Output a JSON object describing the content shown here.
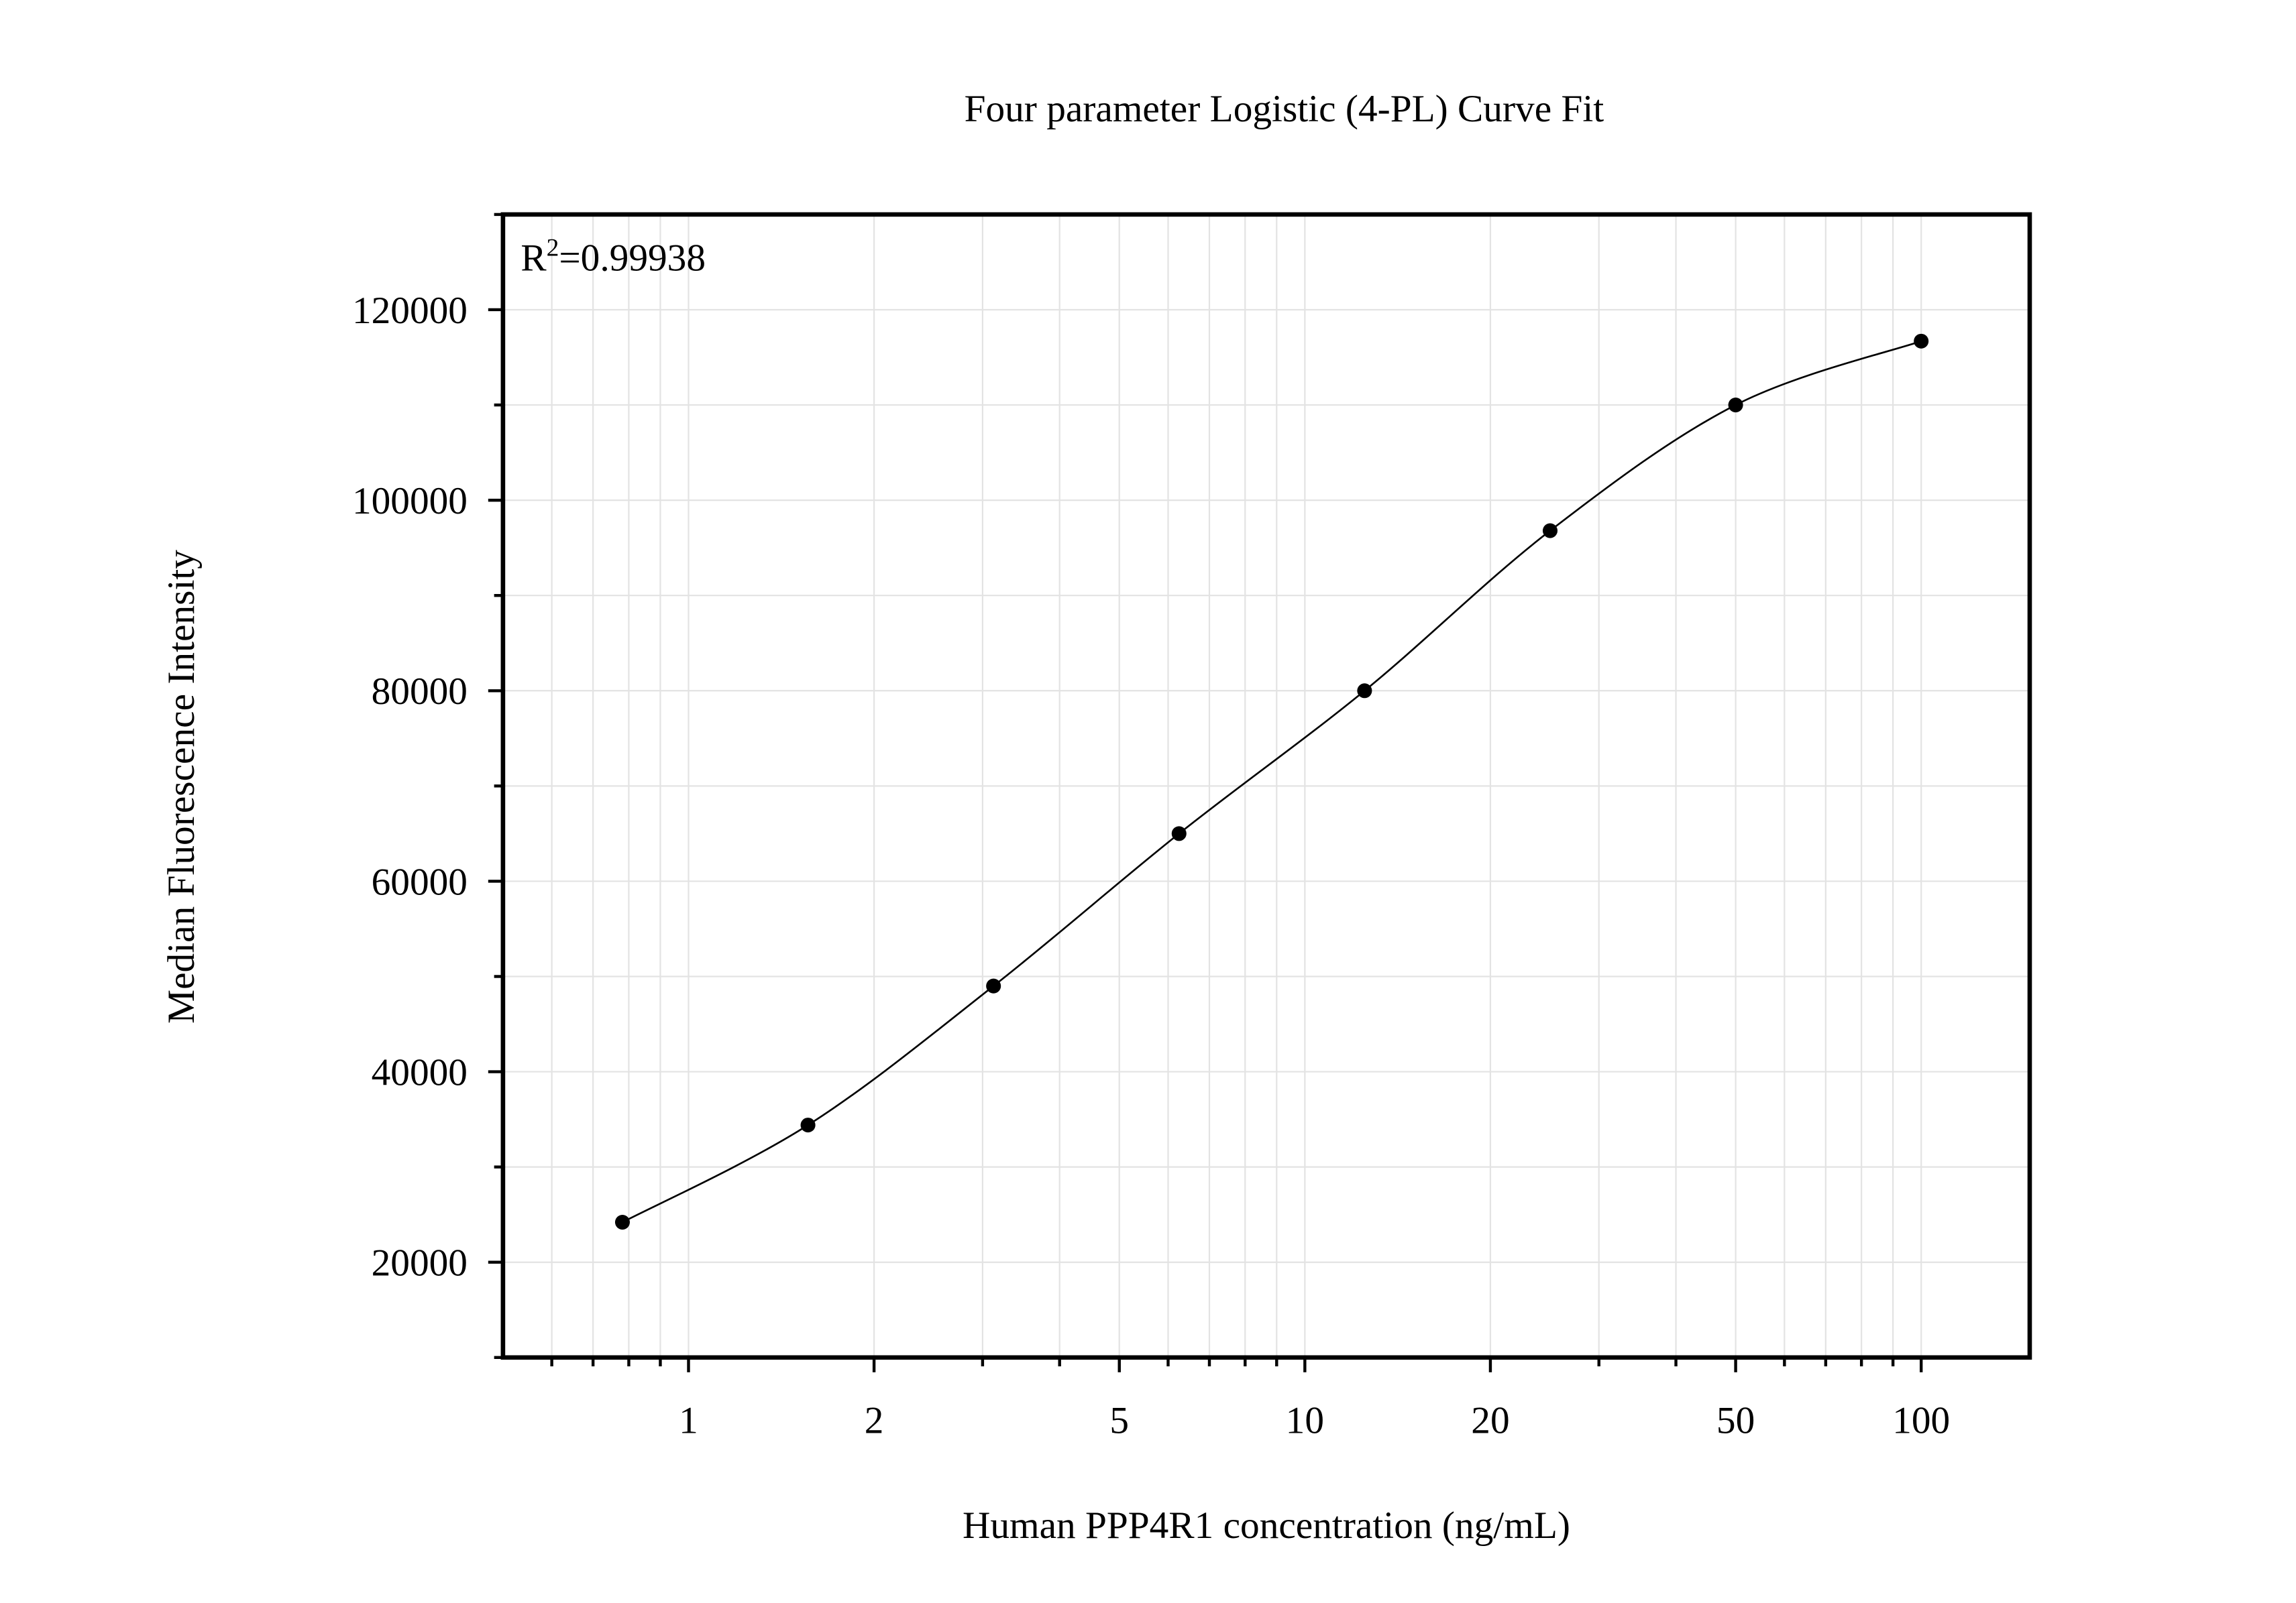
{
  "chart_data": {
    "type": "scatter",
    "title": "Four parameter Logistic (4-PL) Curve Fit",
    "x_label": "Human PPP4R1 concentration (ng/mL)",
    "y_label": "Median Fluorescence Intensity",
    "annotation": {
      "base": "R",
      "superscript": "2",
      "text": "=0.99938"
    },
    "x_scale": "log",
    "grid": true,
    "color": "#000000",
    "fit_line": true,
    "x": [
      0.78125,
      1.5625,
      3.125,
      6.25,
      12.5,
      25,
      50,
      100
    ],
    "values": [
      24200,
      34400,
      49000,
      65000,
      80000,
      96800,
      110000,
      116700
    ],
    "xlim": [
      0.5,
      150
    ],
    "ylim": [
      10000,
      130000
    ],
    "xticks": [
      1,
      2,
      5,
      10,
      20,
      50,
      100
    ],
    "xminorticks": [
      0.6,
      0.7,
      0.8,
      0.9,
      3,
      4,
      6,
      7,
      8,
      9,
      30,
      40,
      60,
      70,
      80,
      90
    ],
    "yticks": [
      20000,
      40000,
      60000,
      80000,
      100000,
      120000
    ],
    "yminorticks": [
      10000,
      30000,
      50000,
      70000,
      90000,
      110000,
      130000
    ]
  }
}
